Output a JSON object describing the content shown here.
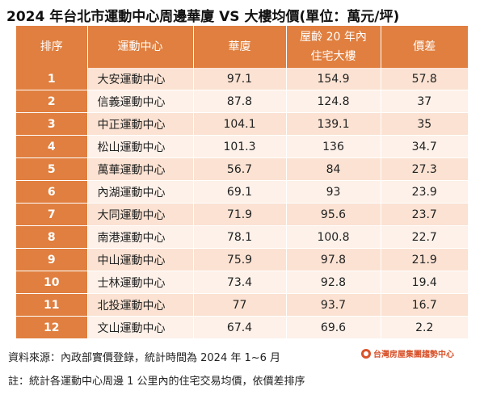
{
  "title": "2024 年台北市運動中心周邊華廈 VS 大樓均價(單位：萬元/坪)",
  "table": {
    "headers": {
      "rank": "排序",
      "center": "運動中心",
      "huasha": "華廈",
      "building_line1": "屋齡 20 年內",
      "building_line2": "住宅大樓",
      "diff": "價差"
    },
    "rows": [
      {
        "rank": "1",
        "center": "大安運動中心",
        "huasha": "97.1",
        "building": "154.9",
        "diff": "57.8"
      },
      {
        "rank": "2",
        "center": "信義運動中心",
        "huasha": "87.8",
        "building": "124.8",
        "diff": "37"
      },
      {
        "rank": "3",
        "center": "中正運動中心",
        "huasha": "104.1",
        "building": "139.1",
        "diff": "35"
      },
      {
        "rank": "4",
        "center": "松山運動中心",
        "huasha": "101.3",
        "building": "136",
        "diff": "34.7"
      },
      {
        "rank": "5",
        "center": "萬華運動中心",
        "huasha": "56.7",
        "building": "84",
        "diff": "27.3"
      },
      {
        "rank": "6",
        "center": "內湖運動中心",
        "huasha": "69.1",
        "building": "93",
        "diff": "23.9"
      },
      {
        "rank": "7",
        "center": "大同運動中心",
        "huasha": "71.9",
        "building": "95.6",
        "diff": "23.7"
      },
      {
        "rank": "8",
        "center": "南港運動中心",
        "huasha": "78.1",
        "building": "100.8",
        "diff": "22.7"
      },
      {
        "rank": "9",
        "center": "中山運動中心",
        "huasha": "75.9",
        "building": "97.8",
        "diff": "21.9"
      },
      {
        "rank": "10",
        "center": "士林運動中心",
        "huasha": "73.4",
        "building": "92.8",
        "diff": "19.4"
      },
      {
        "rank": "11",
        "center": "北投運動中心",
        "huasha": "77",
        "building": "93.7",
        "diff": "16.7"
      },
      {
        "rank": "12",
        "center": "文山運動中心",
        "huasha": "67.4",
        "building": "69.6",
        "diff": "2.2"
      }
    ]
  },
  "footer": {
    "source": "資料來源：內政部實價登錄，統計時間為 2024 年 1~6 月",
    "note": "註：統計各運動中心周邊 1 公里內的住宅交易均價，依價差排序",
    "logo_text": "台灣房屋集團趨勢中心"
  },
  "colors": {
    "header_bg": "#e07f3f",
    "row_odd": "#fbe2d2",
    "row_even": "#fdf1e9",
    "logo": "#d9532b"
  }
}
